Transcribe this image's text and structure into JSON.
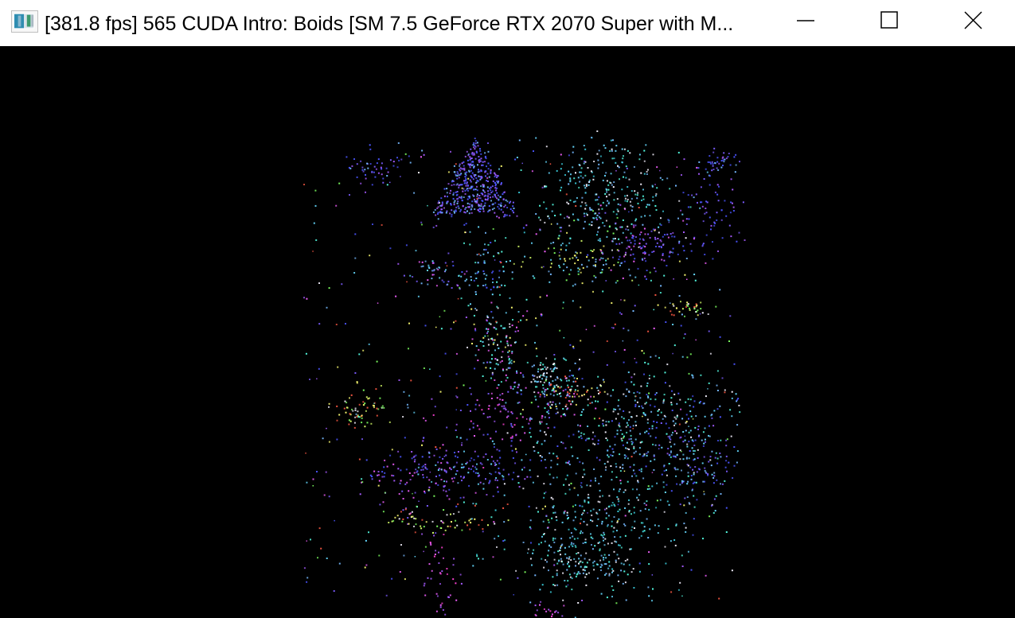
{
  "window": {
    "title": "[381.8 fps] 565 CUDA Intro: Boids [SM 7.5 GeForce RTX 2070 Super with M...",
    "icons": {
      "app": "application-window-icon",
      "minimize": "minimize-icon",
      "maximize": "maximize-icon",
      "close": "close-icon"
    },
    "titlebar_background": "#ffffff",
    "text_color": "#000000"
  },
  "simulation": {
    "background_color": "#000000",
    "colors": {
      "blue": "#4b55ff",
      "violet": "#7b5cff",
      "purple": "#a65bff",
      "cyan": "#65d9ff",
      "aqua": "#55ffe5",
      "teal": "#39c8d8",
      "light_blue": "#75b9ff",
      "green": "#7dff61",
      "lime": "#d7ff69",
      "yellow": "#ffff73",
      "pink": "#f260ff",
      "magenta": "#ff43d7",
      "red": "#ff5a45",
      "white": "#f5f2ff"
    }
  }
}
